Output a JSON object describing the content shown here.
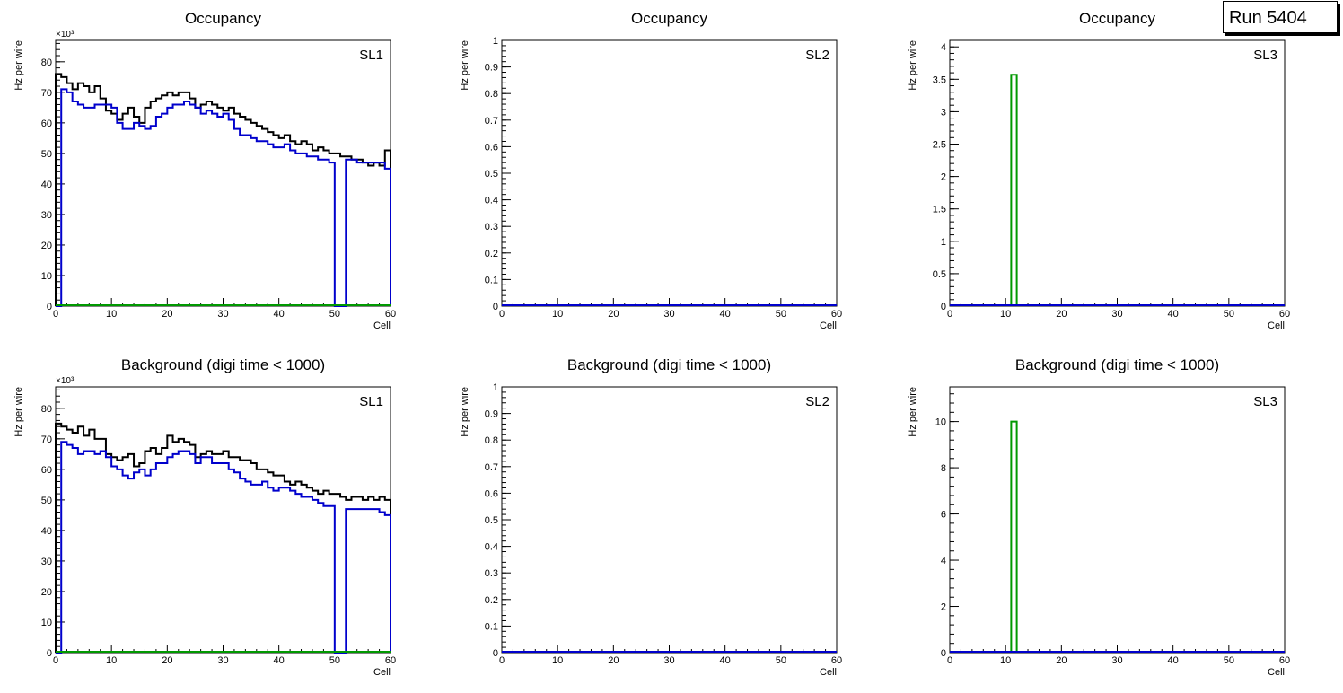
{
  "run_label": "Run 5404",
  "colors": {
    "black": "#000000",
    "blue": "#0000cc",
    "green": "#009900"
  },
  "chart_data": [
    {
      "type": "step-histogram",
      "title": "Occupancy",
      "panel_label": "SL1",
      "xlabel": "Cell",
      "ylabel": "Hz per wire",
      "exponent_label": "×10³",
      "xlim": [
        0,
        60
      ],
      "ylim": [
        0,
        87
      ],
      "x_ticks": [
        "0",
        "10",
        "20",
        "30",
        "40",
        "50",
        "60"
      ],
      "y_ticks": [
        "0",
        "10",
        "20",
        "30",
        "40",
        "50",
        "60",
        "70",
        "80"
      ],
      "series": [
        {
          "name": "black",
          "color": "#000000",
          "values": [
            76,
            75,
            73,
            71,
            73,
            72,
            70,
            72,
            68,
            64,
            63,
            61,
            63,
            65,
            62,
            60,
            65,
            67,
            68,
            69,
            70,
            69,
            70,
            70,
            68,
            65,
            66,
            67,
            66,
            65,
            64,
            65,
            63,
            62,
            61,
            60,
            59,
            58,
            57,
            56,
            55,
            56,
            54,
            53,
            54,
            53,
            51,
            52,
            51,
            50,
            50,
            49,
            49,
            48,
            48,
            47,
            46,
            47,
            46,
            51
          ]
        },
        {
          "name": "blue",
          "color": "#0000cc",
          "values": [
            0,
            71,
            70,
            67,
            66,
            65,
            65,
            66,
            66,
            66,
            65,
            60,
            58,
            58,
            60,
            59,
            58,
            59,
            62,
            63,
            65,
            66,
            66,
            67,
            66,
            65,
            63,
            64,
            63,
            62,
            63,
            61,
            58,
            56,
            56,
            55,
            54,
            54,
            53,
            52,
            52,
            53,
            51,
            50,
            50,
            49,
            49,
            48,
            48,
            47,
            0,
            0,
            48,
            48,
            47,
            47,
            47,
            47,
            47,
            45
          ]
        },
        {
          "name": "green",
          "color": "#009900",
          "values": []
        }
      ]
    },
    {
      "type": "step-histogram",
      "title": "Occupancy",
      "panel_label": "SL2",
      "xlabel": "Cell",
      "ylabel": "Hz per wire",
      "exponent_label": "",
      "xlim": [
        0,
        60
      ],
      "ylim": [
        0,
        1
      ],
      "x_ticks": [
        "0",
        "10",
        "20",
        "30",
        "40",
        "50",
        "60"
      ],
      "y_ticks": [
        "0",
        "0.1",
        "0.2",
        "0.3",
        "0.4",
        "0.5",
        "0.6",
        "0.7",
        "0.8",
        "0.9",
        "1"
      ],
      "series": []
    },
    {
      "type": "step-histogram",
      "title": "Occupancy",
      "panel_label": "SL3",
      "xlabel": "Cell",
      "ylabel": "Hz per wire",
      "exponent_label": "",
      "xlim": [
        0,
        60
      ],
      "ylim": [
        0,
        4.1
      ],
      "x_ticks": [
        "0",
        "10",
        "20",
        "30",
        "40",
        "50",
        "60"
      ],
      "y_ticks": [
        "0",
        "0.5",
        "1",
        "1.5",
        "2",
        "2.5",
        "3",
        "3.5",
        "4"
      ],
      "series": [
        {
          "name": "green",
          "color": "#009900",
          "bin_start": 11,
          "bin_end": 12,
          "value": 3.57
        }
      ]
    },
    {
      "type": "step-histogram",
      "title": "Background (digi time < 1000)",
      "panel_label": "SL1",
      "xlabel": "Cell",
      "ylabel": "Hz per wire",
      "exponent_label": "×10³",
      "xlim": [
        0,
        60
      ],
      "ylim": [
        0,
        87
      ],
      "x_ticks": [
        "0",
        "10",
        "20",
        "30",
        "40",
        "50",
        "60"
      ],
      "y_ticks": [
        "0",
        "10",
        "20",
        "30",
        "40",
        "50",
        "60",
        "70",
        "80"
      ],
      "series": [
        {
          "name": "black",
          "color": "#000000",
          "values": [
            75,
            74,
            73,
            72,
            74,
            71,
            73,
            70,
            70,
            65,
            64,
            63,
            64,
            65,
            61,
            62,
            66,
            67,
            65,
            67,
            71,
            69,
            70,
            69,
            68,
            64,
            65,
            66,
            65,
            65,
            66,
            64,
            64,
            63,
            63,
            62,
            60,
            60,
            59,
            58,
            58,
            56,
            55,
            56,
            55,
            54,
            53,
            52,
            53,
            52,
            52,
            51,
            50,
            51,
            51,
            50,
            51,
            50,
            51,
            50
          ]
        },
        {
          "name": "blue",
          "color": "#0000cc",
          "values": [
            0,
            69,
            68,
            67,
            65,
            66,
            66,
            65,
            66,
            64,
            61,
            60,
            58,
            57,
            59,
            60,
            58,
            60,
            62,
            62,
            64,
            65,
            66,
            66,
            65,
            62,
            64,
            64,
            62,
            62,
            62,
            60,
            59,
            57,
            56,
            55,
            55,
            56,
            54,
            53,
            54,
            54,
            53,
            52,
            51,
            51,
            50,
            49,
            48,
            48,
            0,
            0,
            47,
            47,
            47,
            47,
            47,
            47,
            46,
            45
          ]
        },
        {
          "name": "green",
          "color": "#009900",
          "values": []
        }
      ]
    },
    {
      "type": "step-histogram",
      "title": "Background (digi time < 1000)",
      "panel_label": "SL2",
      "xlabel": "Cell",
      "ylabel": "Hz per wire",
      "exponent_label": "",
      "xlim": [
        0,
        60
      ],
      "ylim": [
        0,
        1
      ],
      "x_ticks": [
        "0",
        "10",
        "20",
        "30",
        "40",
        "50",
        "60"
      ],
      "y_ticks": [
        "0",
        "0.1",
        "0.2",
        "0.3",
        "0.4",
        "0.5",
        "0.6",
        "0.7",
        "0.8",
        "0.9",
        "1"
      ],
      "series": []
    },
    {
      "type": "step-histogram",
      "title": "Background (digi time < 1000)",
      "panel_label": "SL3",
      "xlabel": "Cell",
      "ylabel": "Hz per wire",
      "exponent_label": "",
      "xlim": [
        0,
        60
      ],
      "ylim": [
        0,
        11.5
      ],
      "x_ticks": [
        "0",
        "10",
        "20",
        "30",
        "40",
        "50",
        "60"
      ],
      "y_ticks": [
        "0",
        "2",
        "4",
        "6",
        "8",
        "10"
      ],
      "series": [
        {
          "name": "green",
          "color": "#009900",
          "bin_start": 11,
          "bin_end": 12,
          "value": 10
        }
      ]
    }
  ]
}
